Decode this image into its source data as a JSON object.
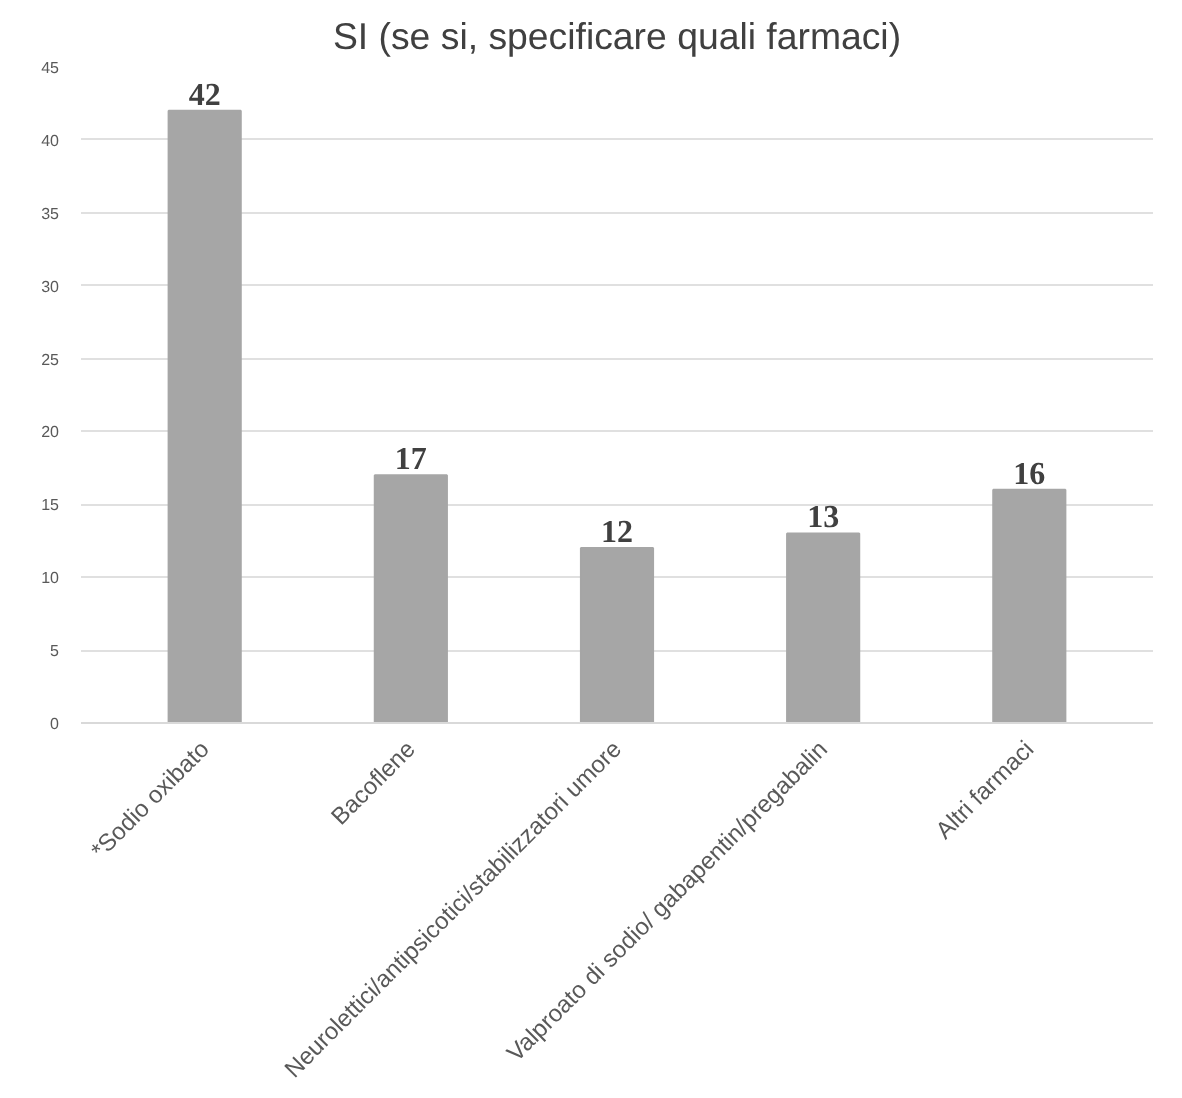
{
  "chart_data": {
    "type": "bar",
    "title": "SI (se si, specificare quali farmaci)",
    "categories": [
      "*Sodio oxibato",
      "Bacoflene",
      "Neurolettici/antipsicotici/stabilizzatori umore",
      "Valproato di sodio/ gabapentin/pregabalin",
      "Altri farmaci"
    ],
    "values": [
      42,
      17,
      12,
      13,
      16
    ],
    "color": "#a6a6a6",
    "data_labels": true,
    "ylim": [
      0,
      45
    ],
    "yticks": [
      0,
      5,
      10,
      15,
      20,
      25,
      30,
      35,
      40,
      45
    ],
    "grid": "y"
  }
}
